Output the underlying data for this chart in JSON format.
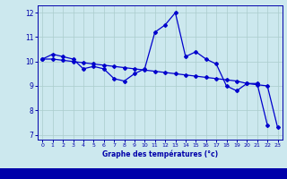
{
  "xlabel": "Graphe des températures (°c)",
  "x_hours": [
    0,
    1,
    2,
    3,
    4,
    5,
    6,
    7,
    8,
    9,
    10,
    11,
    12,
    13,
    14,
    15,
    16,
    17,
    18,
    19,
    20,
    21,
    22,
    23
  ],
  "temp_actual": [
    10.1,
    10.3,
    10.2,
    10.1,
    9.7,
    9.8,
    9.7,
    9.3,
    9.2,
    9.5,
    9.7,
    11.2,
    11.5,
    12.0,
    10.2,
    10.4,
    10.1,
    9.9,
    9.0,
    8.8,
    9.1,
    9.1,
    7.4,
    null
  ],
  "temp_trend": [
    10.1,
    10.1,
    10.05,
    10.0,
    9.95,
    9.9,
    9.85,
    9.8,
    9.75,
    9.7,
    9.65,
    9.6,
    9.55,
    9.5,
    9.45,
    9.4,
    9.35,
    9.3,
    9.25,
    9.2,
    9.1,
    9.05,
    9.0,
    7.3
  ],
  "ylim": [
    6.8,
    12.3
  ],
  "xlim": [
    -0.5,
    23.5
  ],
  "yticks": [
    7,
    8,
    9,
    10,
    11,
    12
  ],
  "xticks": [
    0,
    1,
    2,
    3,
    4,
    5,
    6,
    7,
    8,
    9,
    10,
    11,
    12,
    13,
    14,
    15,
    16,
    17,
    18,
    19,
    20,
    21,
    22,
    23
  ],
  "line_color": "#0000cc",
  "marker": "D",
  "markersize": 2.0,
  "bg_color": "#cce8ee",
  "grid_color": "#aacccc",
  "axis_color": "#0000aa",
  "label_color": "#0000aa",
  "linewidth": 0.9,
  "bottom_bar_color": "#0000aa"
}
